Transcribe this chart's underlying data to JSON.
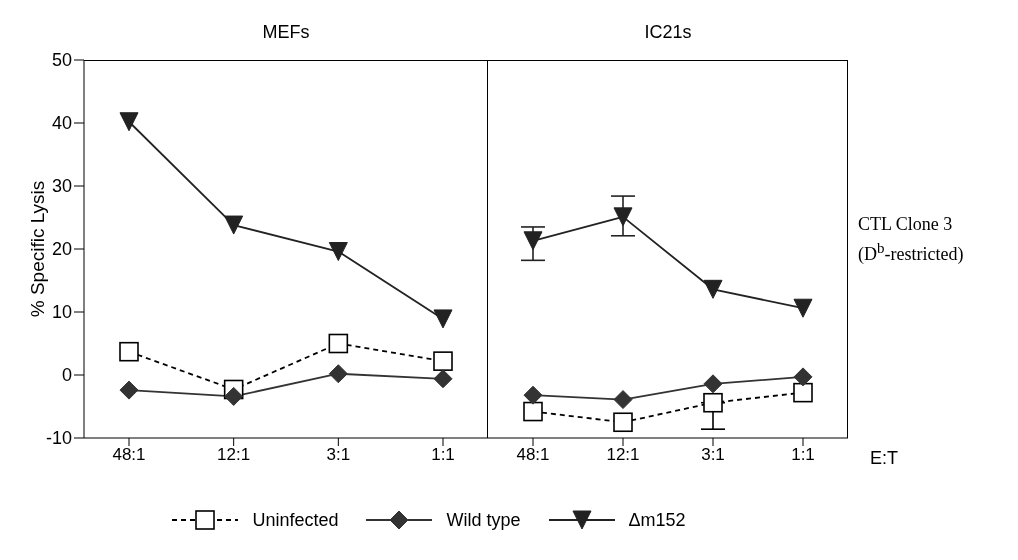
{
  "chart_data": [
    {
      "type": "line",
      "title": "MEFs",
      "ylabel": "% Specific Lysis",
      "categories": [
        "48:1",
        "12:1",
        "3:1",
        "1:1"
      ],
      "ylim": [
        -10,
        50
      ],
      "yticks": [
        -10,
        0,
        10,
        20,
        30,
        40,
        50
      ],
      "legend": "bottom",
      "grid": false,
      "series": [
        {
          "name": "Uninfected",
          "color": "#000000",
          "marker": "square",
          "line_style": "dashed",
          "values": [
            3.7,
            -2.3,
            5.0,
            2.2
          ]
        },
        {
          "name": "Wild type",
          "color": "#333333",
          "marker": "diamond",
          "line_style": "solid",
          "values": [
            -2.4,
            -3.4,
            0.2,
            -0.6
          ]
        },
        {
          "name": "Δm152",
          "color": "#222222",
          "marker": "triangle",
          "line_style": "solid",
          "values": [
            40.2,
            23.8,
            19.6,
            8.9
          ]
        }
      ]
    },
    {
      "type": "line",
      "title": "IC21s",
      "xlabel": "E:T",
      "categories": [
        "48:1",
        "12:1",
        "3:1",
        "1:1"
      ],
      "ylim": [
        -10,
        50
      ],
      "yticks": [
        -10,
        0,
        10,
        20,
        30,
        40,
        50
      ],
      "tick_labels": "x",
      "legend": false,
      "grid": false,
      "annotations": [
        "CTL Clone 3",
        "(D$^{b}$-restricted)"
      ],
      "series": [
        {
          "color": "#000000",
          "marker": "square",
          "line_style": "dashed",
          "values": [
            -5.8,
            -7.5,
            -4.4,
            -2.8
          ],
          "errors": [
            null,
            null,
            [
              -8.6,
              -4.4
            ],
            null
          ]
        },
        {
          "color": "#333333",
          "marker": "diamond",
          "line_style": "solid",
          "values": [
            -3.2,
            -3.9,
            -1.4,
            -0.3
          ]
        },
        {
          "color": "#222222",
          "marker": "triangle",
          "line_style": "solid",
          "values": [
            21.3,
            25.1,
            13.6,
            10.6
          ],
          "errors": [
            [
              18.2,
              23.5
            ],
            [
              22.1,
              28.4
            ],
            null,
            null
          ]
        }
      ]
    }
  ]
}
